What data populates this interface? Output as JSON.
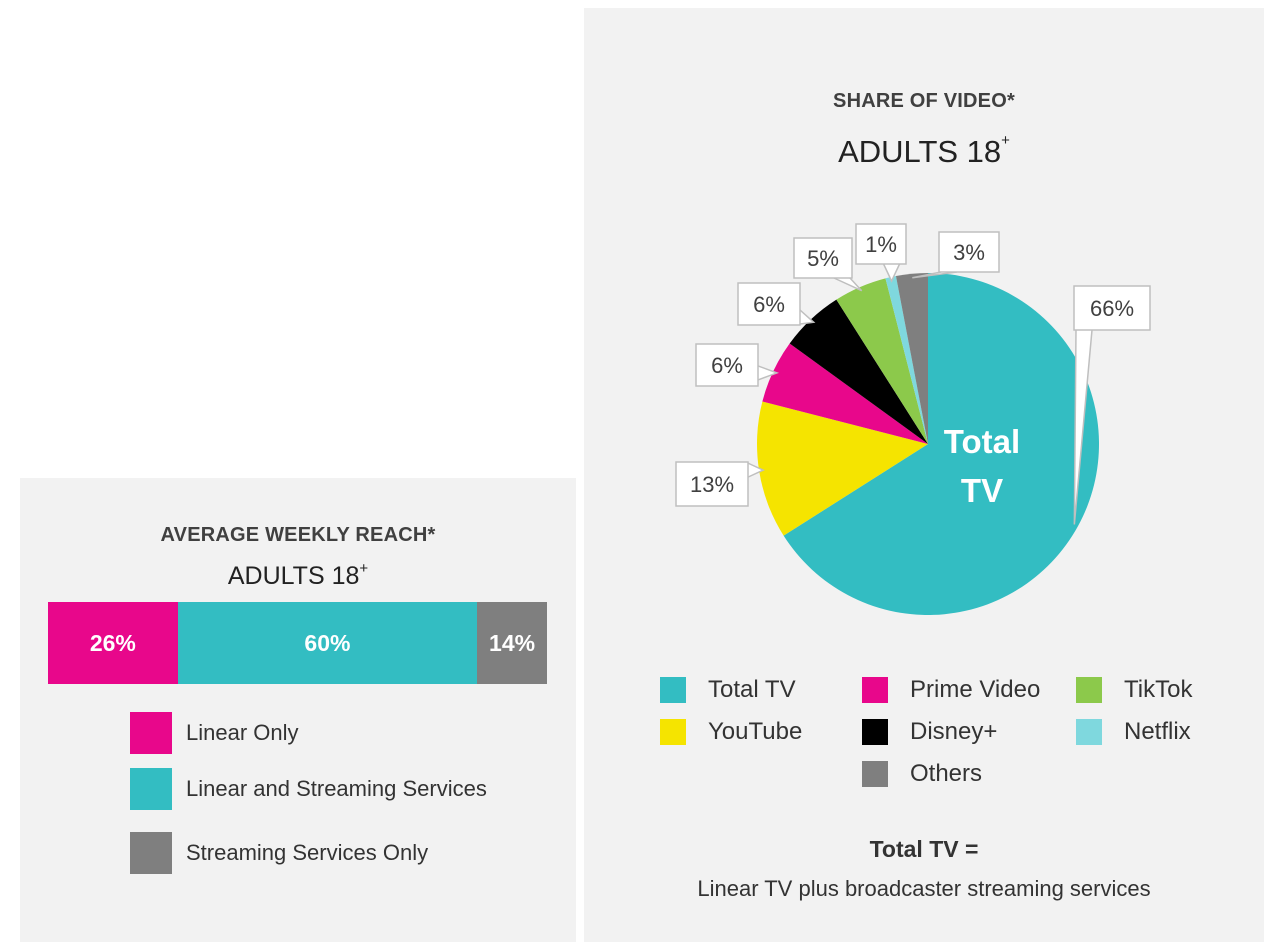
{
  "chart_data": [
    {
      "type": "bar",
      "stacked": true,
      "orientation": "horizontal",
      "title": "AVERAGE WEEKLY REACH*",
      "subtitle": "ADULTS 18",
      "subtitle_sup": "+",
      "series": [
        {
          "name": "Linear Only",
          "value": 26,
          "label": "26%",
          "color": "#e8078b"
        },
        {
          "name": "Linear and Streaming Services",
          "value": 60,
          "label": "60%",
          "color": "#33bdc2"
        },
        {
          "name": "Streaming Services Only",
          "value": 14,
          "label": "14%",
          "color": "#7f7f7f"
        }
      ],
      "legend": "below"
    },
    {
      "type": "pie",
      "title": "SHARE OF VIDEO*",
      "subtitle": "ADULTS 18",
      "subtitle_sup": "+",
      "center_label_line1": "Total",
      "center_label_line2": "TV",
      "slices": [
        {
          "name": "Total TV",
          "value": 66,
          "label": "66%",
          "color": "#33bdc2"
        },
        {
          "name": "YouTube",
          "value": 13,
          "label": "13%",
          "color": "#f5e400"
        },
        {
          "name": "Prime Video",
          "value": 6,
          "label": "6%",
          "color": "#e8078b"
        },
        {
          "name": "Disney+",
          "value": 6,
          "label": "6%",
          "color": "#000000"
        },
        {
          "name": "TikTok",
          "value": 5,
          "label": "5%",
          "color": "#8cc94b"
        },
        {
          "name": "Netflix",
          "value": 1,
          "label": "1%",
          "color": "#7fd8de"
        },
        {
          "name": "Others",
          "value": 3,
          "label": "3%",
          "color": "#7f7f7f"
        }
      ],
      "legend": "below",
      "footnote_bold": "Total TV =",
      "footnote": "Linear TV plus broadcaster streaming services"
    }
  ]
}
